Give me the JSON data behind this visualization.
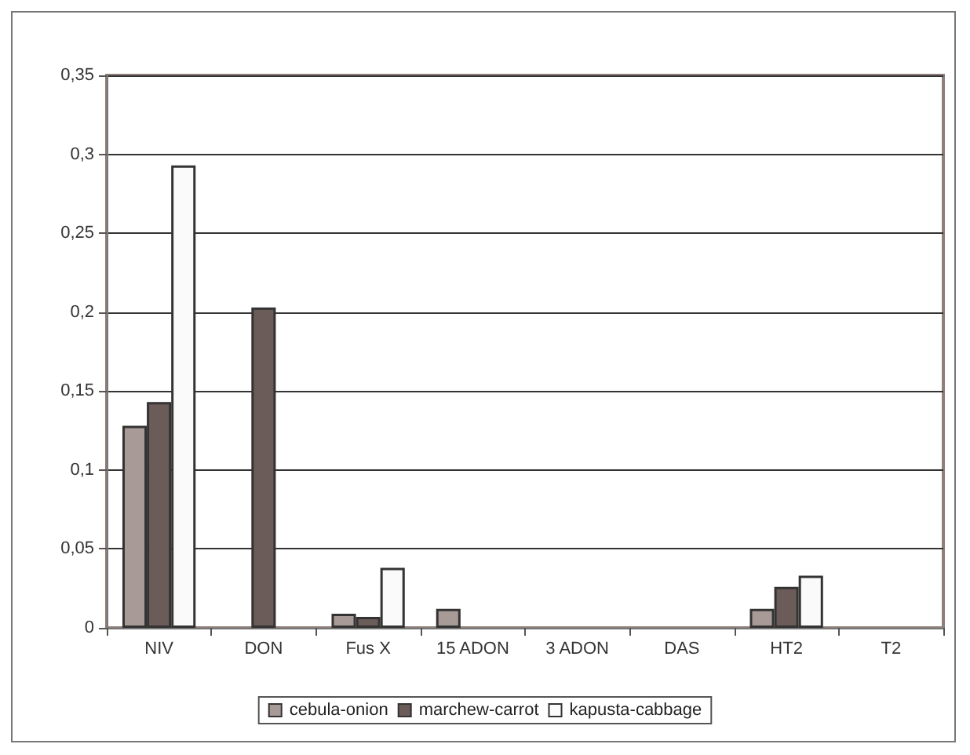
{
  "chart_data": {
    "type": "bar",
    "categories": [
      "NIV",
      "DON",
      "Fus X",
      "15 ADON",
      "3 ADON",
      "DAS",
      "HT2",
      "T2"
    ],
    "series": [
      {
        "name": "cebula-onion",
        "color": "#a89b97",
        "values": [
          0.128,
          null,
          0.009,
          0.012,
          null,
          null,
          0.012,
          null
        ]
      },
      {
        "name": "marchew-carrot",
        "color": "#6b5b59",
        "values": [
          0.143,
          0.203,
          0.007,
          null,
          null,
          null,
          0.026,
          null
        ]
      },
      {
        "name": "kapusta-cabbage",
        "color": "#fafafa",
        "values": [
          0.293,
          null,
          0.038,
          null,
          null,
          null,
          0.033,
          null
        ]
      }
    ],
    "ylim": [
      0,
      0.35
    ],
    "yticks": [
      {
        "value": 0,
        "label": "0"
      },
      {
        "value": 0.05,
        "label": "0,05"
      },
      {
        "value": 0.1,
        "label": "0,1"
      },
      {
        "value": 0.15,
        "label": "0,15"
      },
      {
        "value": 0.2,
        "label": "0,2"
      },
      {
        "value": 0.25,
        "label": "0,25"
      },
      {
        "value": 0.3,
        "label": "0,3"
      },
      {
        "value": 0.35,
        "label": "0,35"
      }
    ],
    "grid": "y",
    "legend": "bottom"
  }
}
